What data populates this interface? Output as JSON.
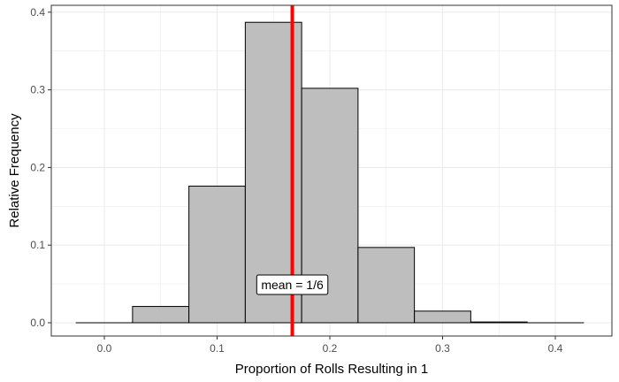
{
  "chart_data": {
    "type": "bar",
    "subtype": "histogram",
    "title": "",
    "xlabel": "Proportion of Rolls Resulting in 1",
    "ylabel": "Relative Frequency",
    "xlim": [
      -0.05,
      0.45
    ],
    "ylim": [
      0,
      0.41
    ],
    "x_ticks": [
      0.0,
      0.1,
      0.2,
      0.3,
      0.4
    ],
    "x_tick_labels": [
      "0.0",
      "0.1",
      "0.2",
      "0.3",
      "0.4"
    ],
    "y_ticks": [
      0.0,
      0.1,
      0.2,
      0.3,
      0.4
    ],
    "y_tick_labels": [
      "0.0",
      "0.1",
      "0.2",
      "0.3",
      "0.4"
    ],
    "grid": true,
    "bin_width": 0.05,
    "bins": [
      {
        "center": 0.0,
        "value": 0.0
      },
      {
        "center": 0.05,
        "value": 0.021
      },
      {
        "center": 0.1,
        "value": 0.176
      },
      {
        "center": 0.15,
        "value": 0.387
      },
      {
        "center": 0.2,
        "value": 0.302
      },
      {
        "center": 0.25,
        "value": 0.097
      },
      {
        "center": 0.3,
        "value": 0.015
      },
      {
        "center": 0.35,
        "value": 0.001
      },
      {
        "center": 0.4,
        "value": 0.0
      }
    ],
    "mean_line": {
      "value": 0.1667,
      "color": "#ff0000"
    },
    "annotation": {
      "text": "mean = 1/6",
      "x": 0.1667,
      "y": 0.049
    },
    "colors": {
      "bar_fill": "#bebebe",
      "bar_edge": "#000000",
      "grid": "#ebebeb",
      "panel_border": "#333333"
    }
  }
}
